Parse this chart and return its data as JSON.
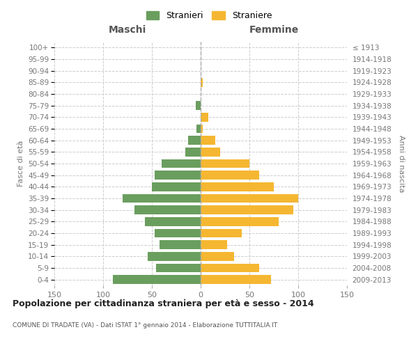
{
  "age_groups": [
    "0-4",
    "5-9",
    "10-14",
    "15-19",
    "20-24",
    "25-29",
    "30-34",
    "35-39",
    "40-44",
    "45-49",
    "50-54",
    "55-59",
    "60-64",
    "65-69",
    "70-74",
    "75-79",
    "80-84",
    "85-89",
    "90-94",
    "95-99",
    "100+"
  ],
  "birth_years": [
    "2009-2013",
    "2004-2008",
    "1999-2003",
    "1994-1998",
    "1989-1993",
    "1984-1988",
    "1979-1983",
    "1974-1978",
    "1969-1973",
    "1964-1968",
    "1959-1963",
    "1954-1958",
    "1949-1953",
    "1944-1948",
    "1939-1943",
    "1934-1938",
    "1929-1933",
    "1924-1928",
    "1919-1923",
    "1914-1918",
    "≤ 1913"
  ],
  "maschi": [
    90,
    46,
    54,
    42,
    47,
    57,
    68,
    80,
    50,
    47,
    40,
    16,
    13,
    4,
    0,
    5,
    0,
    0,
    0,
    0,
    0
  ],
  "femmine": [
    72,
    60,
    34,
    27,
    42,
    80,
    95,
    100,
    75,
    60,
    50,
    20,
    15,
    2,
    8,
    0,
    0,
    2,
    0,
    0,
    0
  ],
  "color_maschi": "#6a9e5e",
  "color_femmine": "#f5b731",
  "xlim": 150,
  "title": "Popolazione per cittadinanza straniera per età e sesso - 2014",
  "subtitle": "COMUNE DI TRADATE (VA) - Dati ISTAT 1° gennaio 2014 - Elaborazione TUTTITALIA.IT",
  "legend_maschi": "Stranieri",
  "legend_femmine": "Straniere",
  "label_maschi": "Maschi",
  "label_femmine": "Femmine",
  "ylabel_left": "Fasce di età",
  "ylabel_right": "Anni di nascita",
  "background_color": "#ffffff",
  "grid_color": "#cccccc"
}
